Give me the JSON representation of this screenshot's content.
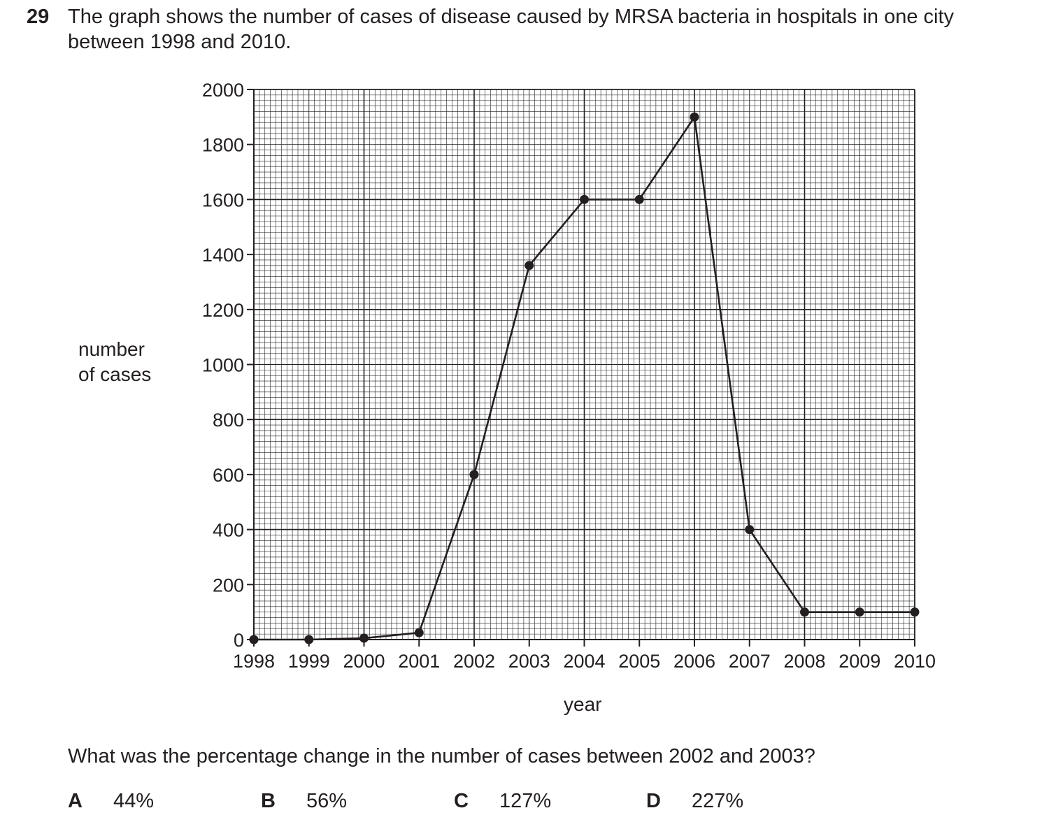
{
  "question": {
    "number": "29",
    "text": "The graph shows the number of cases of disease caused by MRSA bacteria in hospitals in one city between 1998 and 2010.",
    "prompt": "What was the percentage change in the number of cases between 2002 and 2003?",
    "options": [
      {
        "letter": "A",
        "value": "44%"
      },
      {
        "letter": "B",
        "value": "56%"
      },
      {
        "letter": "C",
        "value": "127%"
      },
      {
        "letter": "D",
        "value": "227%"
      }
    ]
  },
  "chart_data": {
    "type": "line",
    "xlabel": "year",
    "ylabel": "number of cases",
    "x": [
      1998,
      1999,
      2000,
      2001,
      2002,
      2003,
      2004,
      2005,
      2006,
      2007,
      2008,
      2009,
      2010
    ],
    "y": [
      0,
      0,
      5,
      25,
      600,
      1360,
      1600,
      1600,
      1900,
      400,
      100,
      100,
      100
    ],
    "xlim": [
      1998,
      2010
    ],
    "ylim": [
      0,
      2000
    ],
    "y_ticks": [
      0,
      200,
      400,
      600,
      800,
      1000,
      1200,
      1400,
      1600,
      1800,
      2000
    ],
    "x_ticks": [
      "1998",
      "1999",
      "2000",
      "2001",
      "2002",
      "2003",
      "2004",
      "2005",
      "2006",
      "2007",
      "2008",
      "2009",
      "2010"
    ],
    "grid": true,
    "markers": true
  }
}
